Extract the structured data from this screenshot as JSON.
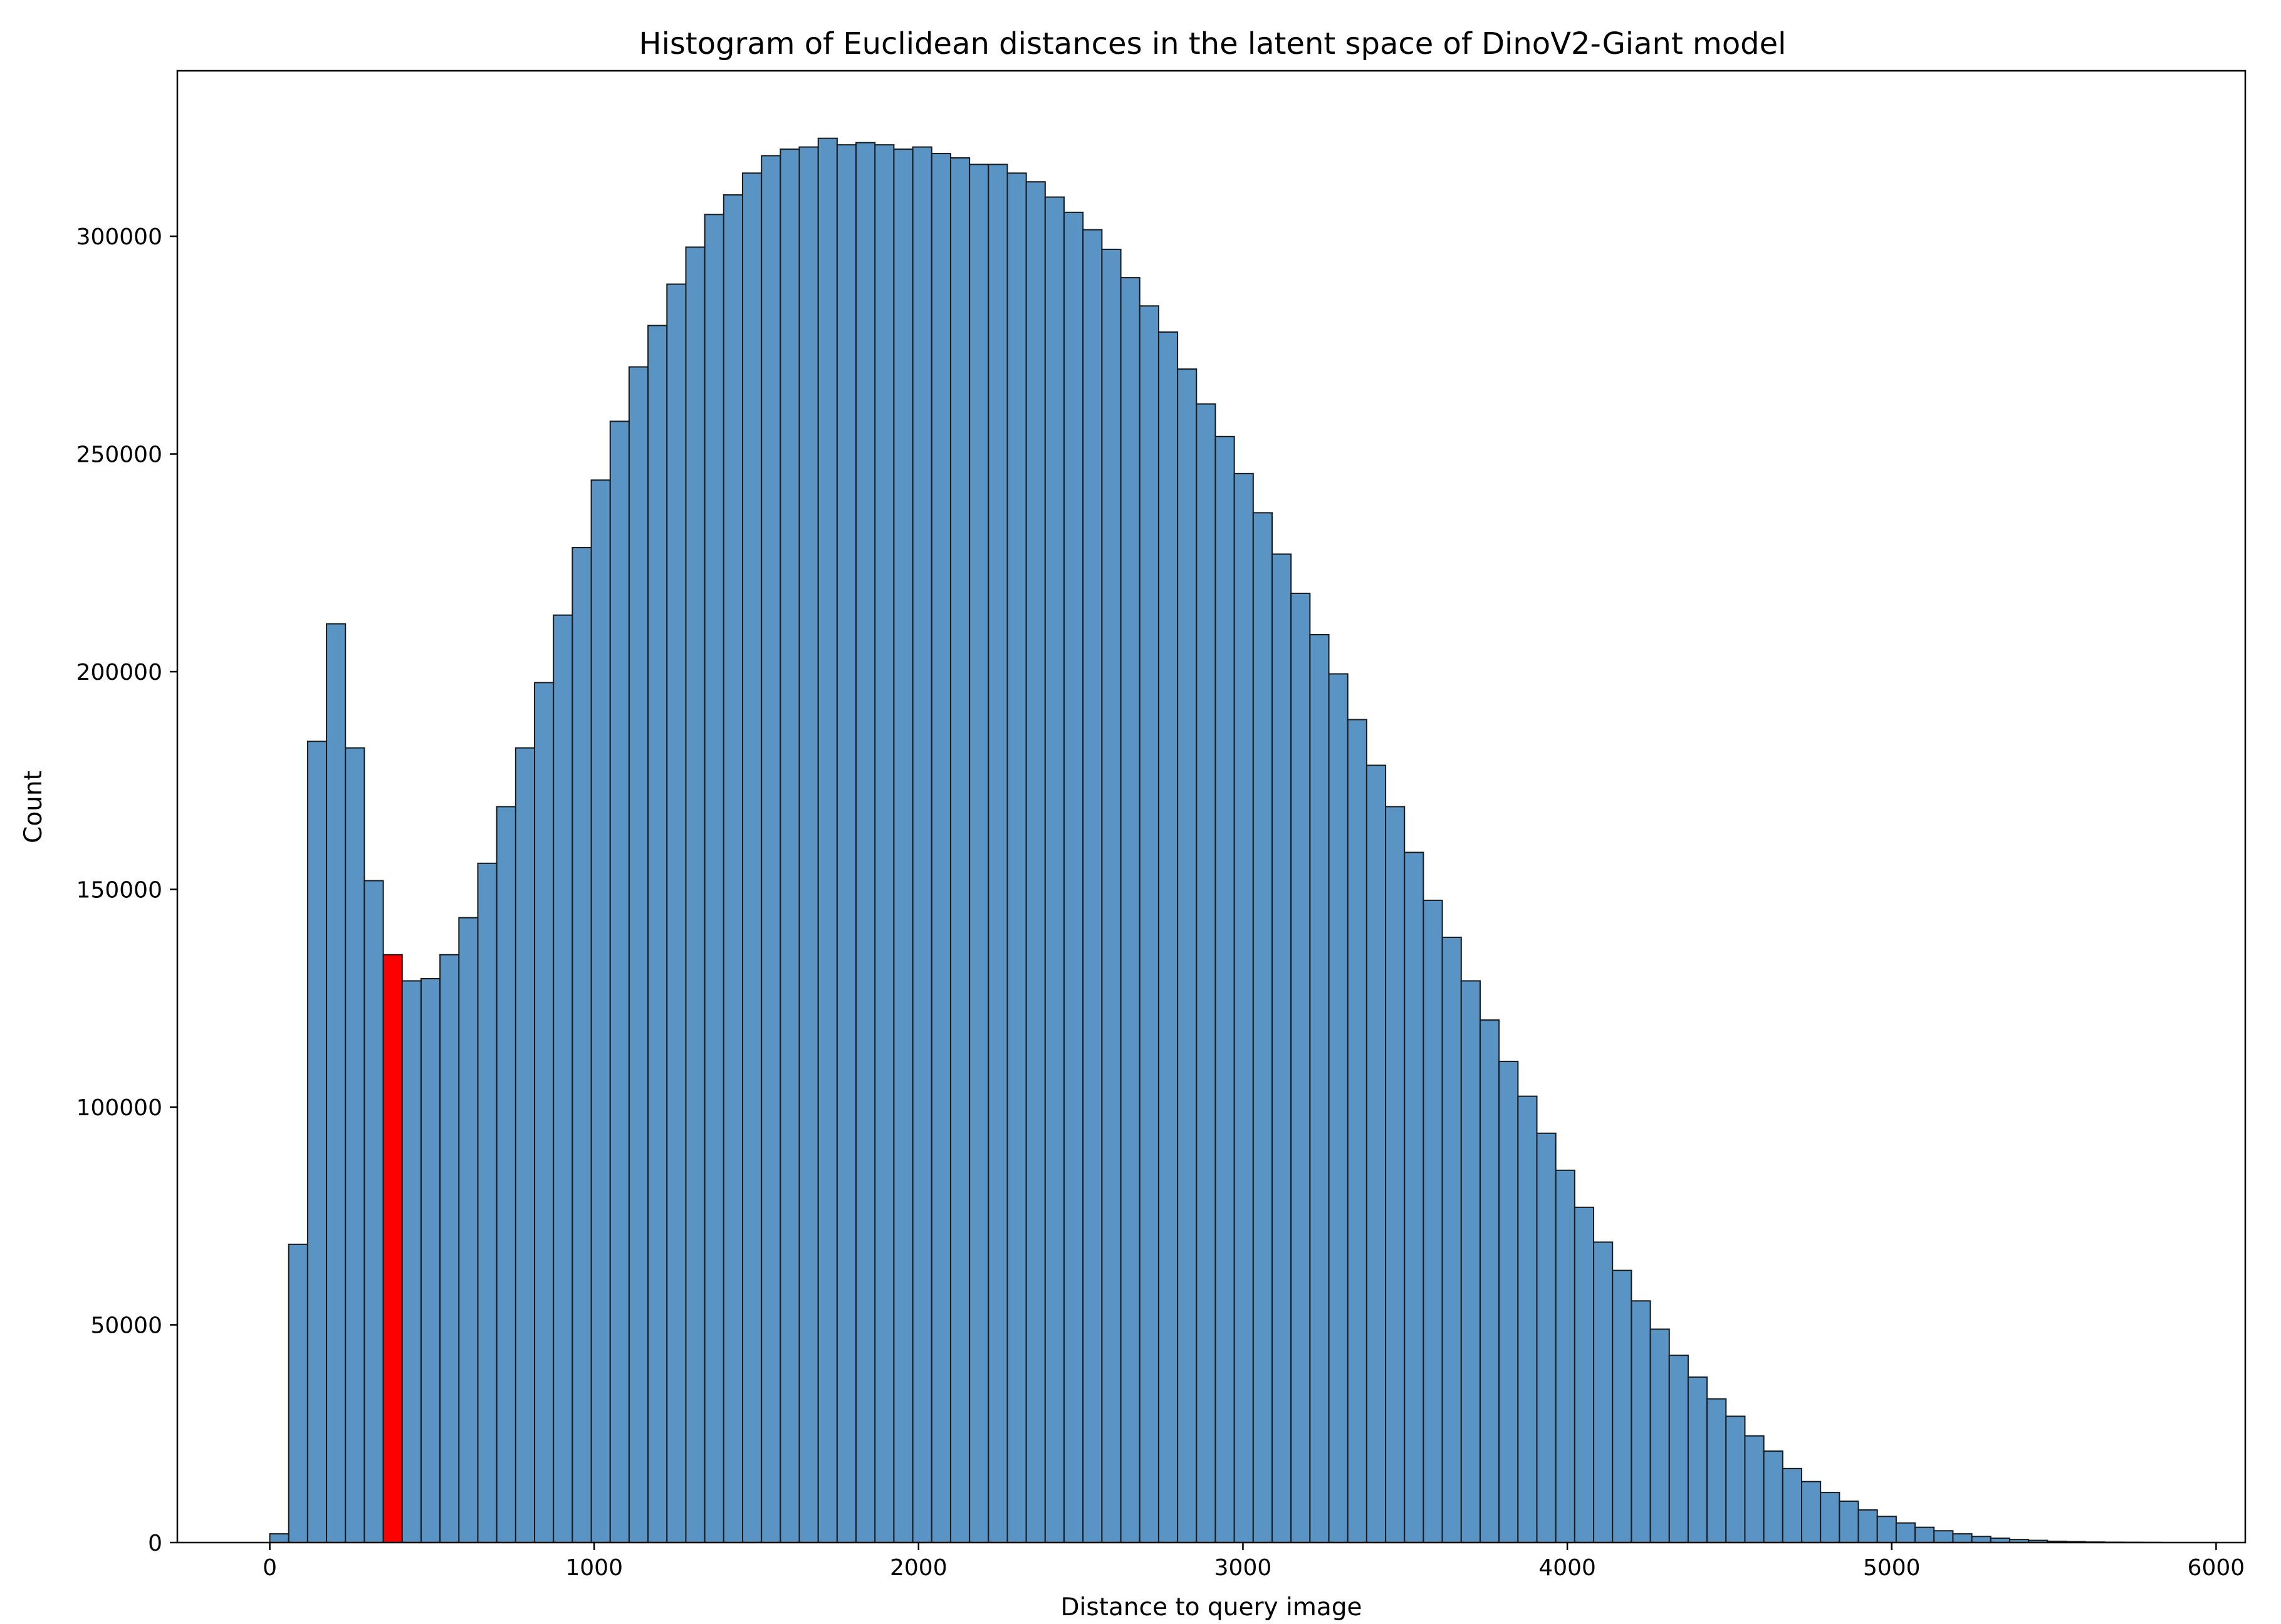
{
  "chart_data": {
    "type": "bar",
    "title": "Histogram of Euclidean distances in the latent space of DinoV2-Giant model",
    "xlabel": "Distance to query image",
    "ylabel": "Count",
    "xlim": [
      -285,
      6090
    ],
    "ylim": [
      0,
      338000
    ],
    "x_ticks": [
      0,
      1000,
      2000,
      3000,
      4000,
      5000,
      6000
    ],
    "y_ticks": [
      0,
      50000,
      100000,
      150000,
      200000,
      250000,
      300000
    ],
    "bin_start": 0,
    "bin_width": 58.3,
    "bar_color": "#5994c4",
    "highlight_color": "#ff0000",
    "edge_color": "#1a1a1a",
    "highlight_bin_index": 6,
    "grid": false,
    "values": [
      2000,
      68500,
      184000,
      211000,
      182500,
      152000,
      135000,
      129000,
      129500,
      135000,
      143500,
      156000,
      169000,
      182500,
      197500,
      213000,
      228500,
      244000,
      257500,
      270000,
      279500,
      289000,
      297500,
      305000,
      309500,
      314500,
      318500,
      320000,
      320500,
      322500,
      321000,
      321500,
      321000,
      320000,
      320500,
      319000,
      318000,
      316500,
      316500,
      314500,
      312500,
      309000,
      305500,
      301500,
      297000,
      290500,
      284000,
      278000,
      269500,
      261500,
      254000,
      245500,
      236500,
      227000,
      218000,
      208500,
      199500,
      189000,
      178500,
      169000,
      158500,
      147500,
      139000,
      129000,
      120000,
      110500,
      102500,
      94000,
      85500,
      77000,
      69000,
      62500,
      55500,
      49000,
      43000,
      38000,
      33000,
      29000,
      24500,
      21000,
      17000,
      14000,
      11500,
      9500,
      7500,
      6000,
      4500,
      3500,
      2700,
      2000,
      1400,
      1000,
      700,
      500,
      300,
      200,
      120,
      80,
      50,
      30
    ]
  }
}
